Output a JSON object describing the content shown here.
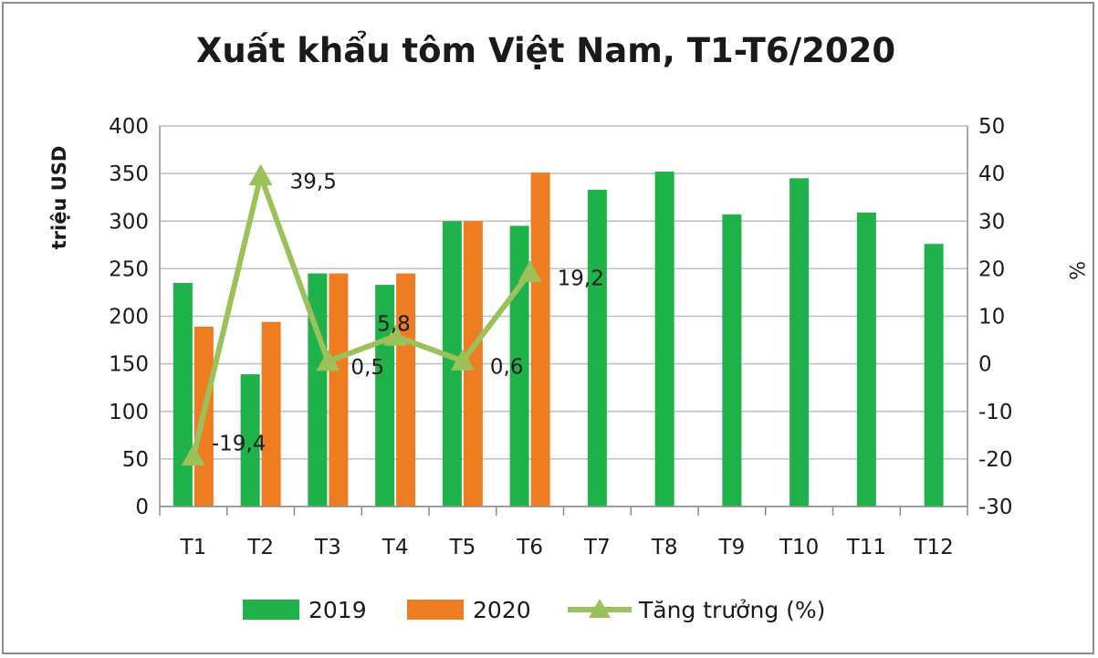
{
  "chart_data": {
    "type": "bar",
    "title": "Xuất khẩu tôm Việt Nam, T1-T6/2020",
    "categories": [
      "T1",
      "T2",
      "T3",
      "T4",
      "T5",
      "T6",
      "T7",
      "T8",
      "T9",
      "T10",
      "T11",
      "T12"
    ],
    "series": [
      {
        "name": "2019",
        "kind": "bar",
        "axis": "left",
        "color": "#1fb24a",
        "values": [
          235,
          139,
          245,
          233,
          300,
          295,
          333,
          352,
          307,
          345,
          309,
          276
        ]
      },
      {
        "name": "2020",
        "kind": "bar",
        "axis": "left",
        "color": "#ee7d22",
        "values": [
          189,
          194,
          245,
          245,
          300,
          351,
          null,
          null,
          null,
          null,
          null,
          null
        ]
      },
      {
        "name": "Tăng trưởng (%)",
        "kind": "line",
        "axis": "right",
        "color": "#9bc25a",
        "values": [
          -19.4,
          39.5,
          0.5,
          5.8,
          0.6,
          19.2,
          null,
          null,
          null,
          null,
          null,
          null
        ],
        "labels": [
          "-19,4",
          "39,5",
          "0,5",
          "5,8",
          "0,6",
          "19,2"
        ]
      }
    ],
    "ylabel": "triệu USD",
    "ylim": [
      0,
      400
    ],
    "yticks": [
      "0",
      "50",
      "100",
      "150",
      "200",
      "250",
      "300",
      "350",
      "400"
    ],
    "y2label": "%",
    "y2lim": [
      -30,
      50
    ],
    "y2ticks": [
      "-30",
      "-20",
      "-10",
      "0",
      "10",
      "20",
      "30",
      "40",
      "50"
    ],
    "grid": "horizontal",
    "legend": "bottom"
  }
}
